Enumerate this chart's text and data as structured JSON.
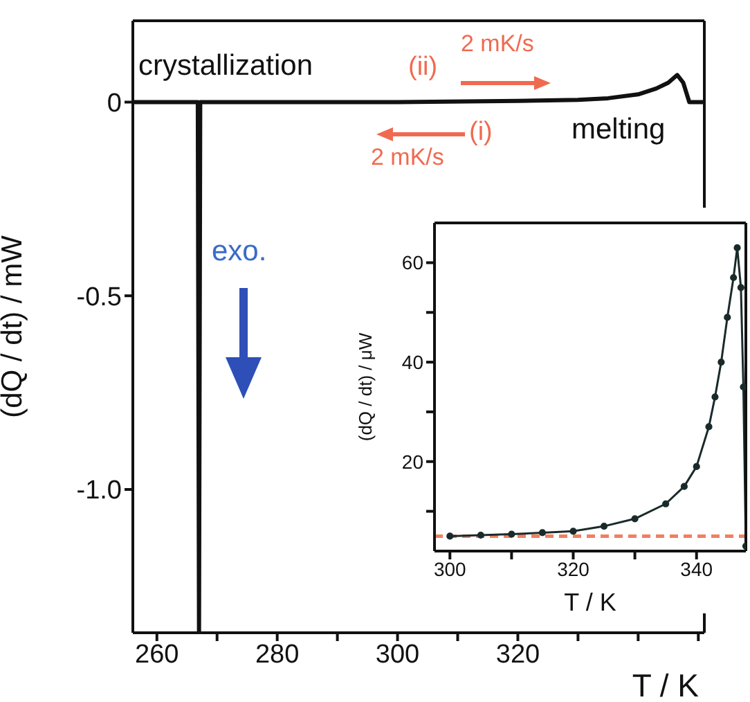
{
  "chart_data": [
    {
      "type": "line",
      "xlabel": "T / K",
      "ylabel": "(dQ / dt) / mW",
      "annotations": [
        "crystallization",
        "(ii)",
        "2 mK/s",
        "(i)",
        "2 mK/s",
        "melting",
        "exo."
      ],
      "x": [
        256,
        266.8,
        267,
        267.2,
        280,
        300,
        320,
        330,
        335,
        340,
        343,
        345,
        346.5,
        347.5,
        348.5,
        351
      ],
      "series": [
        {
          "color": "#111111",
          "values": [
            0,
            0,
            -1.37,
            0,
            0,
            0,
            0.003,
            0.006,
            0.01,
            0.02,
            0.035,
            0.05,
            0.07,
            0.05,
            0,
            0
          ]
        }
      ],
      "xlim": [
        256,
        351
      ],
      "xticks": [
        260,
        {
          "value": 270,
          "label": null
        },
        280,
        {
          "value": 290,
          "label": null
        },
        300,
        {
          "value": 310,
          "label": null
        },
        320,
        {
          "value": 330,
          "label": null
        },
        {
          "value": 340,
          "label": null
        },
        {
          "value": 350,
          "label": null
        }
      ],
      "ylim": [
        -1.37,
        0.21
      ],
      "yticks": [
        0,
        -0.5,
        {
          "value": -1,
          "label": "-1.0"
        }
      ],
      "marker": "none"
    },
    {
      "type": "line",
      "xlabel": "T / K",
      "ylabel": "(dQ / dt) / μW",
      "x": [
        300,
        305,
        310,
        315,
        320,
        325,
        330,
        335,
        338,
        340,
        342,
        343,
        344,
        345,
        346,
        346.6,
        347.2,
        347.6,
        348
      ],
      "series": [
        {
          "color": "#1a2a2a",
          "values": [
            5,
            5.2,
            5.4,
            5.7,
            6,
            7,
            8.5,
            11.5,
            15,
            19,
            27,
            33,
            40,
            49,
            57,
            63,
            55,
            35,
            3
          ]
        }
      ],
      "xlim": [
        297.5,
        348
      ],
      "xticks": [
        300,
        {
          "value": 310,
          "label": null
        },
        320,
        {
          "value": 330,
          "label": null
        },
        340
      ],
      "ylim": [
        2,
        68
      ],
      "yticks": [
        {
          "value": 10,
          "label": null
        },
        20,
        {
          "value": 30,
          "label": null
        },
        40,
        {
          "value": 50,
          "label": null
        },
        60
      ],
      "ref_lines": [
        {
          "axis": "y",
          "value": 5,
          "color": "#f08060",
          "line_style": "dashed"
        }
      ],
      "marker": "circle"
    }
  ]
}
